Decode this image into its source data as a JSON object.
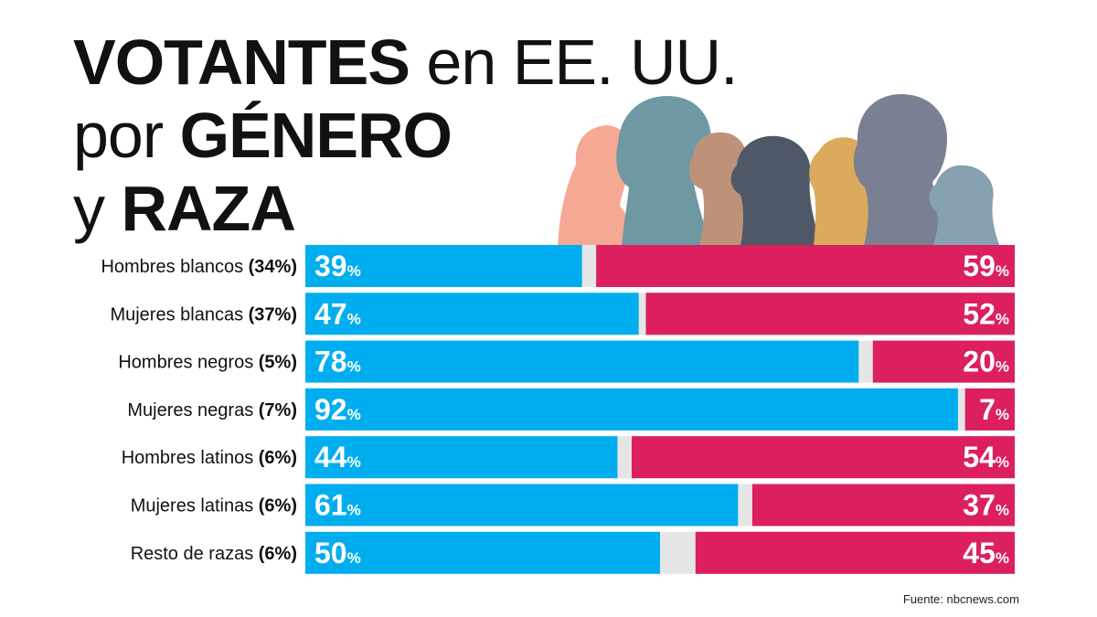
{
  "title": {
    "line1_bold": "VOTANTES",
    "line1_rest": " en EE. UU.",
    "line2_pre": "por ",
    "line2_bold": "GÉNERO",
    "line3_pre": "y ",
    "line3_bold": "RAZA"
  },
  "source": "Fuente: nbcnews.com",
  "chart_data": {
    "type": "bar",
    "stacked": true,
    "orientation": "horizontal",
    "colors": {
      "blue": "#00aeef",
      "red": "#dc1f5e",
      "gap": "#e6e6e6"
    },
    "categories": [
      {
        "name": "Hombres blancos",
        "share": "(34%)"
      },
      {
        "name": "Mujeres blancas",
        "share": "(37%)"
      },
      {
        "name": "Hombres negros",
        "share": "(5%)"
      },
      {
        "name": "Mujeres negras",
        "share": "(7%)"
      },
      {
        "name": "Hombres latinos",
        "share": "(6%)"
      },
      {
        "name": "Mujeres latinas",
        "share": "(6%)"
      },
      {
        "name": "Resto de razas",
        "share": "(6%)"
      }
    ],
    "series": [
      {
        "color": "#00aeef",
        "values": [
          39,
          47,
          78,
          92,
          44,
          61,
          50
        ]
      },
      {
        "color": "#dc1f5e",
        "values": [
          59,
          52,
          20,
          7,
          54,
          37,
          45
        ]
      }
    ],
    "value_suffix": "%",
    "xlim": [
      0,
      100
    ]
  }
}
